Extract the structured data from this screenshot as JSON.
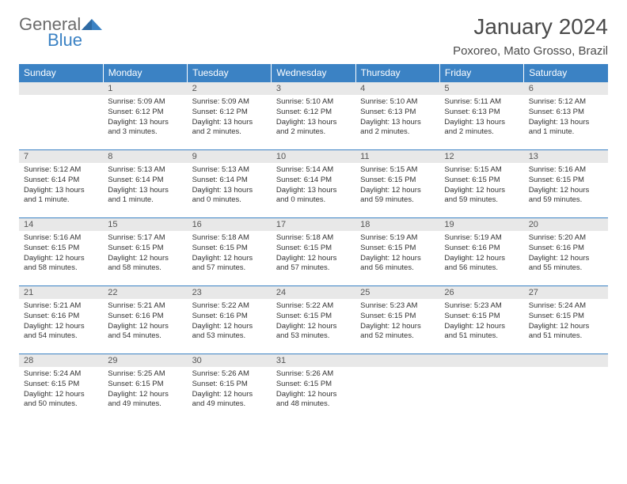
{
  "logo": {
    "word1": "General",
    "word2": "Blue",
    "color_gray": "#6b6b6b",
    "color_blue": "#3b82c4"
  },
  "title": "January 2024",
  "location": "Poxoreo, Mato Grosso, Brazil",
  "header_bg": "#3b82c4",
  "header_fg": "#ffffff",
  "daynum_bg": "#e8e8e8",
  "border_color": "#3b82c4",
  "text_color": "#333333",
  "detail_fontsize": 9.5,
  "days_of_week": [
    "Sunday",
    "Monday",
    "Tuesday",
    "Wednesday",
    "Thursday",
    "Friday",
    "Saturday"
  ],
  "weeks": [
    [
      {
        "day": "",
        "sunrise": "",
        "sunset": "",
        "daylight": ""
      },
      {
        "day": "1",
        "sunrise": "Sunrise: 5:09 AM",
        "sunset": "Sunset: 6:12 PM",
        "daylight": "Daylight: 13 hours and 3 minutes."
      },
      {
        "day": "2",
        "sunrise": "Sunrise: 5:09 AM",
        "sunset": "Sunset: 6:12 PM",
        "daylight": "Daylight: 13 hours and 2 minutes."
      },
      {
        "day": "3",
        "sunrise": "Sunrise: 5:10 AM",
        "sunset": "Sunset: 6:12 PM",
        "daylight": "Daylight: 13 hours and 2 minutes."
      },
      {
        "day": "4",
        "sunrise": "Sunrise: 5:10 AM",
        "sunset": "Sunset: 6:13 PM",
        "daylight": "Daylight: 13 hours and 2 minutes."
      },
      {
        "day": "5",
        "sunrise": "Sunrise: 5:11 AM",
        "sunset": "Sunset: 6:13 PM",
        "daylight": "Daylight: 13 hours and 2 minutes."
      },
      {
        "day": "6",
        "sunrise": "Sunrise: 5:12 AM",
        "sunset": "Sunset: 6:13 PM",
        "daylight": "Daylight: 13 hours and 1 minute."
      }
    ],
    [
      {
        "day": "7",
        "sunrise": "Sunrise: 5:12 AM",
        "sunset": "Sunset: 6:14 PM",
        "daylight": "Daylight: 13 hours and 1 minute."
      },
      {
        "day": "8",
        "sunrise": "Sunrise: 5:13 AM",
        "sunset": "Sunset: 6:14 PM",
        "daylight": "Daylight: 13 hours and 1 minute."
      },
      {
        "day": "9",
        "sunrise": "Sunrise: 5:13 AM",
        "sunset": "Sunset: 6:14 PM",
        "daylight": "Daylight: 13 hours and 0 minutes."
      },
      {
        "day": "10",
        "sunrise": "Sunrise: 5:14 AM",
        "sunset": "Sunset: 6:14 PM",
        "daylight": "Daylight: 13 hours and 0 minutes."
      },
      {
        "day": "11",
        "sunrise": "Sunrise: 5:15 AM",
        "sunset": "Sunset: 6:15 PM",
        "daylight": "Daylight: 12 hours and 59 minutes."
      },
      {
        "day": "12",
        "sunrise": "Sunrise: 5:15 AM",
        "sunset": "Sunset: 6:15 PM",
        "daylight": "Daylight: 12 hours and 59 minutes."
      },
      {
        "day": "13",
        "sunrise": "Sunrise: 5:16 AM",
        "sunset": "Sunset: 6:15 PM",
        "daylight": "Daylight: 12 hours and 59 minutes."
      }
    ],
    [
      {
        "day": "14",
        "sunrise": "Sunrise: 5:16 AM",
        "sunset": "Sunset: 6:15 PM",
        "daylight": "Daylight: 12 hours and 58 minutes."
      },
      {
        "day": "15",
        "sunrise": "Sunrise: 5:17 AM",
        "sunset": "Sunset: 6:15 PM",
        "daylight": "Daylight: 12 hours and 58 minutes."
      },
      {
        "day": "16",
        "sunrise": "Sunrise: 5:18 AM",
        "sunset": "Sunset: 6:15 PM",
        "daylight": "Daylight: 12 hours and 57 minutes."
      },
      {
        "day": "17",
        "sunrise": "Sunrise: 5:18 AM",
        "sunset": "Sunset: 6:15 PM",
        "daylight": "Daylight: 12 hours and 57 minutes."
      },
      {
        "day": "18",
        "sunrise": "Sunrise: 5:19 AM",
        "sunset": "Sunset: 6:15 PM",
        "daylight": "Daylight: 12 hours and 56 minutes."
      },
      {
        "day": "19",
        "sunrise": "Sunrise: 5:19 AM",
        "sunset": "Sunset: 6:16 PM",
        "daylight": "Daylight: 12 hours and 56 minutes."
      },
      {
        "day": "20",
        "sunrise": "Sunrise: 5:20 AM",
        "sunset": "Sunset: 6:16 PM",
        "daylight": "Daylight: 12 hours and 55 minutes."
      }
    ],
    [
      {
        "day": "21",
        "sunrise": "Sunrise: 5:21 AM",
        "sunset": "Sunset: 6:16 PM",
        "daylight": "Daylight: 12 hours and 54 minutes."
      },
      {
        "day": "22",
        "sunrise": "Sunrise: 5:21 AM",
        "sunset": "Sunset: 6:16 PM",
        "daylight": "Daylight: 12 hours and 54 minutes."
      },
      {
        "day": "23",
        "sunrise": "Sunrise: 5:22 AM",
        "sunset": "Sunset: 6:16 PM",
        "daylight": "Daylight: 12 hours and 53 minutes."
      },
      {
        "day": "24",
        "sunrise": "Sunrise: 5:22 AM",
        "sunset": "Sunset: 6:15 PM",
        "daylight": "Daylight: 12 hours and 53 minutes."
      },
      {
        "day": "25",
        "sunrise": "Sunrise: 5:23 AM",
        "sunset": "Sunset: 6:15 PM",
        "daylight": "Daylight: 12 hours and 52 minutes."
      },
      {
        "day": "26",
        "sunrise": "Sunrise: 5:23 AM",
        "sunset": "Sunset: 6:15 PM",
        "daylight": "Daylight: 12 hours and 51 minutes."
      },
      {
        "day": "27",
        "sunrise": "Sunrise: 5:24 AM",
        "sunset": "Sunset: 6:15 PM",
        "daylight": "Daylight: 12 hours and 51 minutes."
      }
    ],
    [
      {
        "day": "28",
        "sunrise": "Sunrise: 5:24 AM",
        "sunset": "Sunset: 6:15 PM",
        "daylight": "Daylight: 12 hours and 50 minutes."
      },
      {
        "day": "29",
        "sunrise": "Sunrise: 5:25 AM",
        "sunset": "Sunset: 6:15 PM",
        "daylight": "Daylight: 12 hours and 49 minutes."
      },
      {
        "day": "30",
        "sunrise": "Sunrise: 5:26 AM",
        "sunset": "Sunset: 6:15 PM",
        "daylight": "Daylight: 12 hours and 49 minutes."
      },
      {
        "day": "31",
        "sunrise": "Sunrise: 5:26 AM",
        "sunset": "Sunset: 6:15 PM",
        "daylight": "Daylight: 12 hours and 48 minutes."
      },
      {
        "day": "",
        "sunrise": "",
        "sunset": "",
        "daylight": ""
      },
      {
        "day": "",
        "sunrise": "",
        "sunset": "",
        "daylight": ""
      },
      {
        "day": "",
        "sunrise": "",
        "sunset": "",
        "daylight": ""
      }
    ]
  ]
}
